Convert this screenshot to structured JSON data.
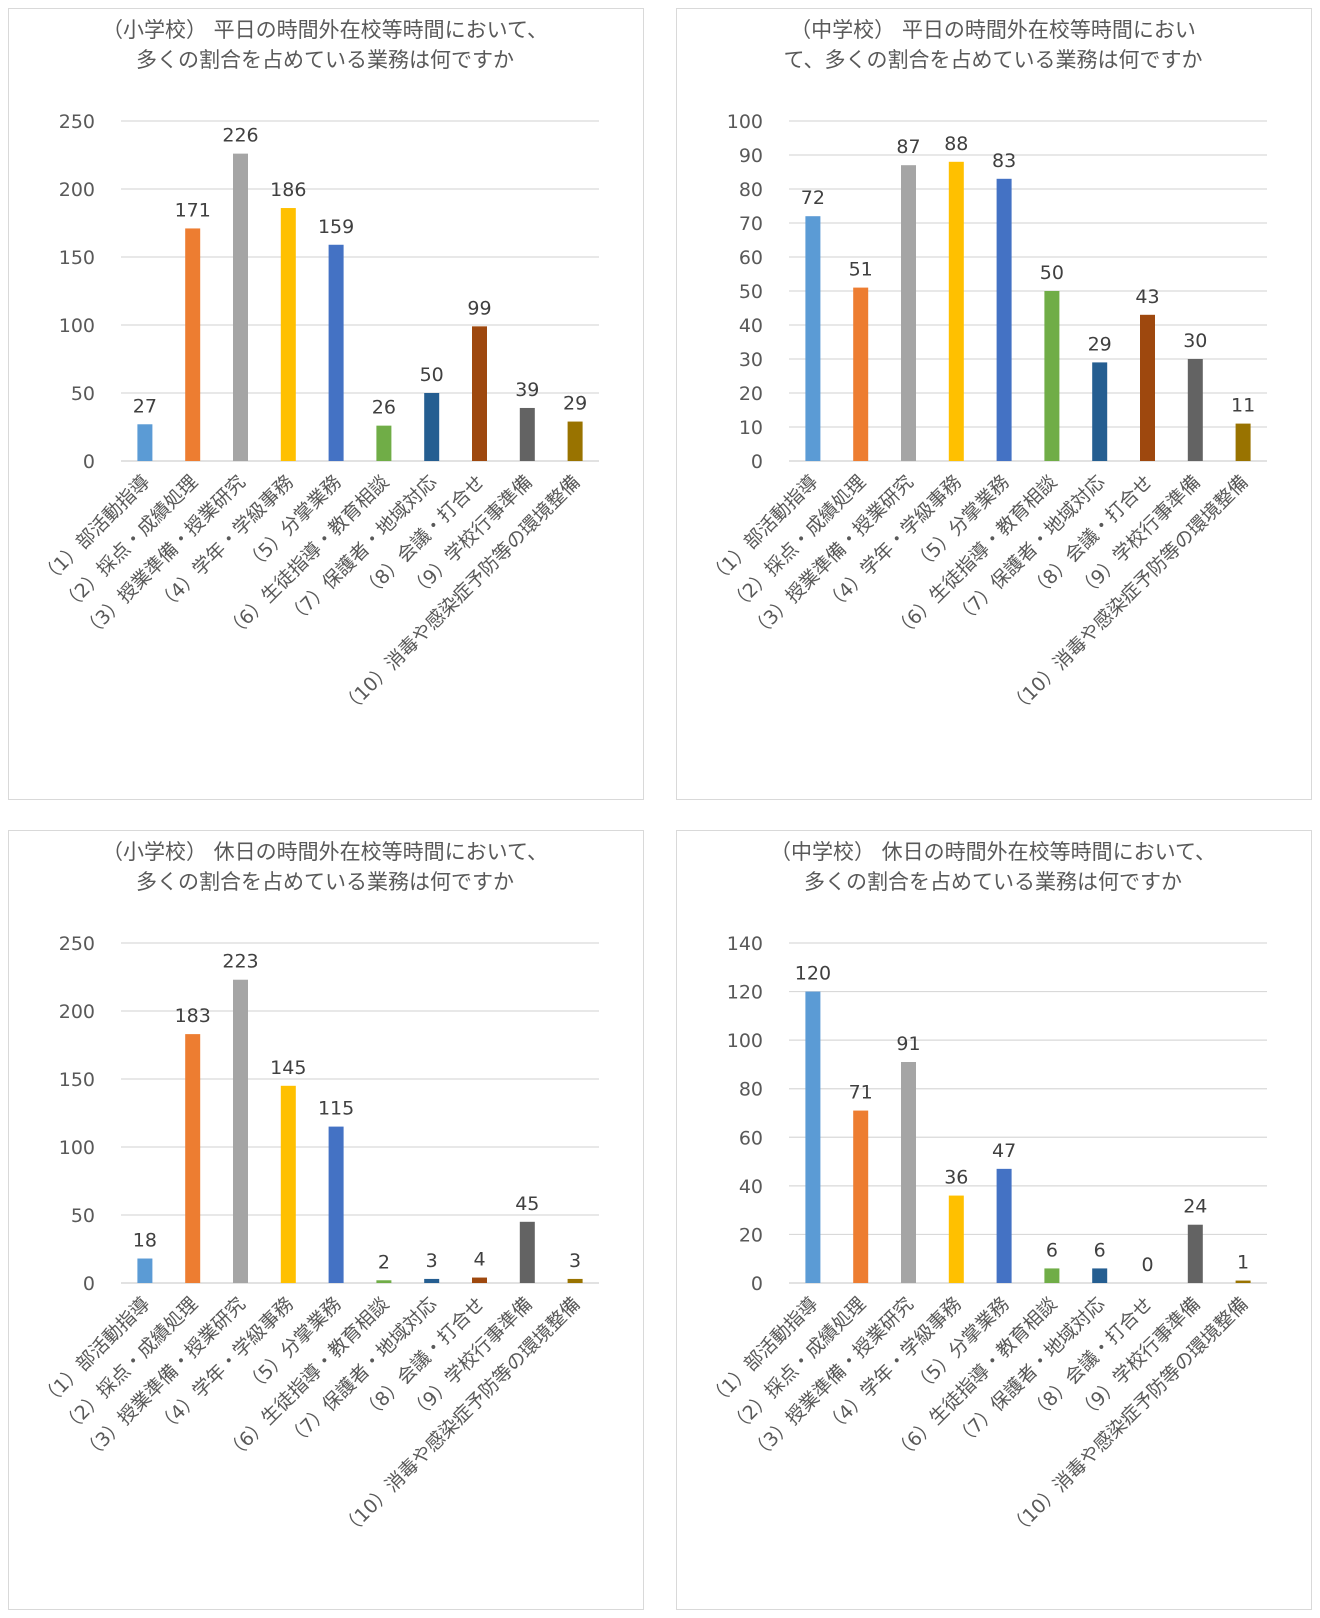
{
  "categories": [
    "（1）部活動指導",
    "（2）採点・成績処理",
    "（3）授業準備・授業研究",
    "（4）学年・学級事務",
    "（5）分掌業務",
    "（6）生徒指導・教育相談",
    "（7）保護者・地域対応",
    "（8）会議・打合せ",
    "（9）学校行事準備",
    "（10）消毒や感染症予防等の環境整備"
  ],
  "colors": [
    "#5b9bd5",
    "#ed7d31",
    "#a5a5a5",
    "#ffc000",
    "#4472c4",
    "#70ad47",
    "#255e91",
    "#9e480e",
    "#636363",
    "#997300"
  ],
  "chart_data": [
    {
      "type": "bar",
      "title_lines": [
        "（小学校） 平日の時間外在校等時間において、",
        "多くの割合を占めている業務は何ですか"
      ],
      "values": [
        27,
        171,
        226,
        186,
        159,
        26,
        50,
        99,
        39,
        29
      ],
      "ylim": [
        0,
        250
      ],
      "yticks": [
        0,
        50,
        100,
        150,
        200,
        250
      ],
      "grid": true
    },
    {
      "type": "bar",
      "title_lines": [
        "（中学校） 平日の時間外在校等時間におい",
        "て、多くの割合を占めている業務は何ですか"
      ],
      "values": [
        72,
        51,
        87,
        88,
        83,
        50,
        29,
        43,
        30,
        11
      ],
      "ylim": [
        0,
        100
      ],
      "yticks": [
        0,
        10,
        20,
        30,
        40,
        50,
        60,
        70,
        80,
        90,
        100
      ],
      "grid": true
    },
    {
      "type": "bar",
      "title_lines": [
        "（小学校） 休日の時間外在校等時間において、",
        "多くの割合を占めている業務は何ですか"
      ],
      "values": [
        18,
        183,
        223,
        145,
        115,
        2,
        3,
        4,
        45,
        3
      ],
      "ylim": [
        0,
        250
      ],
      "yticks": [
        0,
        50,
        100,
        150,
        200,
        250
      ],
      "grid": true
    },
    {
      "type": "bar",
      "title_lines": [
        "（中学校） 休日の時間外在校等時間において、",
        "多くの割合を占めている業務は何ですか"
      ],
      "values": [
        120,
        71,
        91,
        36,
        47,
        6,
        6,
        0,
        24,
        1
      ],
      "ylim": [
        0,
        140
      ],
      "yticks": [
        0,
        20,
        40,
        60,
        80,
        100,
        120,
        140
      ],
      "grid": true
    }
  ]
}
